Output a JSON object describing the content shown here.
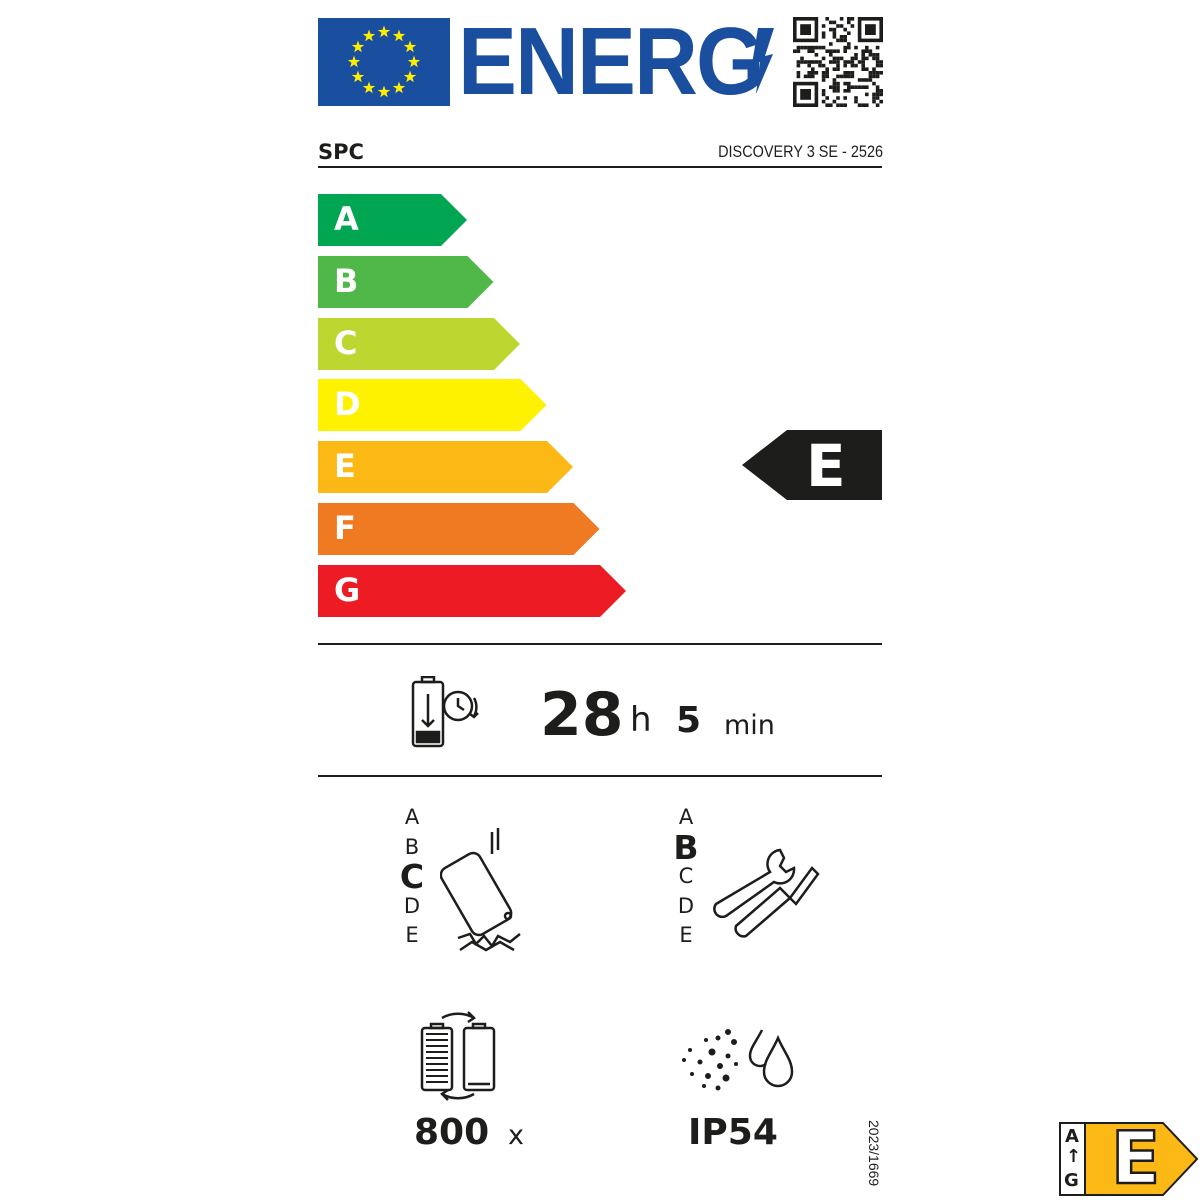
{
  "header": {
    "energy_title": "ENERG",
    "brand": "SPC",
    "model": "DISCOVERY 3 SE - 2526"
  },
  "scale": {
    "classes": [
      "A",
      "B",
      "C",
      "D",
      "E",
      "F",
      "G"
    ],
    "colors": [
      "#00a651",
      "#50b848",
      "#bed630",
      "#fff200",
      "#fcb814",
      "#f07a22",
      "#ed1c24"
    ],
    "rated_class": "E"
  },
  "battery_endurance": {
    "hours": "28",
    "hours_unit": "h",
    "minutes": "5",
    "minutes_unit": "min",
    "icon": "battery-clock-icon"
  },
  "drop_resistance": {
    "classes": [
      "A",
      "B",
      "C",
      "D",
      "E"
    ],
    "selected": "C",
    "icon": "phone-drop-icon"
  },
  "repairability": {
    "classes": [
      "A",
      "B",
      "C",
      "D",
      "E"
    ],
    "selected": "B",
    "icon": "wrench-screwdriver-icon"
  },
  "battery_cycles": {
    "value": "800",
    "unit": "x",
    "icon": "battery-cycle-icon"
  },
  "ingress_protection": {
    "value": "IP54",
    "icon": "dust-water-icon"
  },
  "regulation": "2023/1669",
  "badge": {
    "range_top": "A",
    "range_bottom": "G",
    "class": "E",
    "color": "#fcb814"
  }
}
